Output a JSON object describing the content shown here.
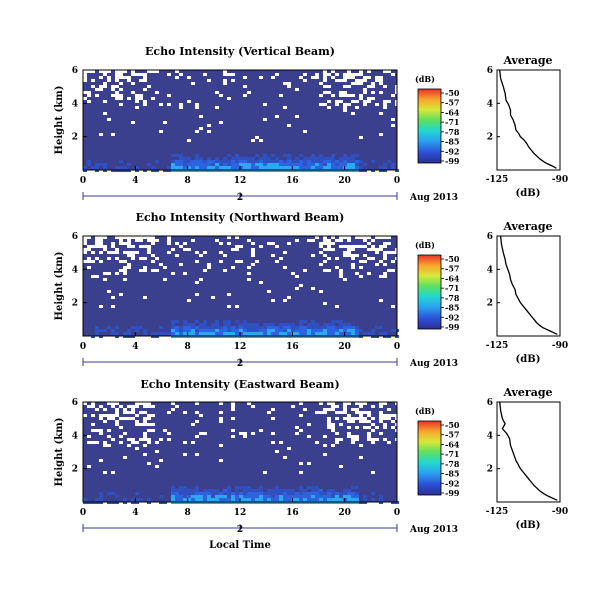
{
  "chart_data": [
    {
      "type": "heatmap",
      "title": "Echo Intensity (Vertical Beam)",
      "ylabel": "Height (km)",
      "x_ticks": [
        "0",
        "4",
        "8",
        "12",
        "16",
        "20",
        "0"
      ],
      "y_ticks": [
        "6",
        "4",
        "2"
      ],
      "xlim": [
        0,
        24
      ],
      "ylim": [
        0,
        6
      ],
      "date_tick": "2",
      "date_label": "Aug 2013",
      "colorbar": {
        "unit": "(dB)",
        "ticks": [
          "-50",
          "-57",
          "-64",
          "-71",
          "-78",
          "-85",
          "-92",
          "-99"
        ]
      },
      "average": {
        "title": "Average",
        "xlabel": "(dB)",
        "x_ticks": [
          "-125",
          "-90"
        ],
        "y_ticks": [
          "6",
          "4",
          "2"
        ],
        "xlim": [
          -125,
          -90
        ],
        "ylim": [
          0,
          6
        ],
        "x": [
          -123.5,
          -123,
          -121.5,
          -120.5,
          -120,
          -118.5,
          -117.5,
          -117.5,
          -116,
          -115,
          -114.5,
          -113,
          -112,
          -110,
          -108.5,
          -107.5,
          -106,
          -104.5,
          -102.5,
          -101,
          -99,
          -97.5,
          -95.5,
          -93.5,
          -92
        ],
        "y": [
          6.0,
          5.5,
          5.0,
          4.6,
          4.2,
          3.9,
          3.6,
          3.3,
          3.0,
          2.7,
          2.4,
          2.2,
          2.0,
          1.8,
          1.6,
          1.4,
          1.2,
          1.0,
          0.8,
          0.65,
          0.5,
          0.4,
          0.3,
          0.2,
          0.1
        ]
      }
    },
    {
      "type": "heatmap",
      "title": "Echo Intensity (Northward Beam)",
      "ylabel": "Height (km)",
      "x_ticks": [
        "0",
        "4",
        "8",
        "12",
        "16",
        "20",
        "0"
      ],
      "y_ticks": [
        "6",
        "4",
        "2"
      ],
      "xlim": [
        0,
        24
      ],
      "ylim": [
        0,
        6
      ],
      "date_tick": "2",
      "date_label": "Aug 2013",
      "colorbar": {
        "unit": "(dB)",
        "ticks": [
          "-50",
          "-57",
          "-64",
          "-71",
          "-78",
          "-85",
          "-92",
          "-99"
        ]
      },
      "average": {
        "title": "Average",
        "xlabel": "(dB)",
        "x_ticks": [
          "-125",
          "-90"
        ],
        "y_ticks": [
          "6",
          "4",
          "2"
        ],
        "xlim": [
          -125,
          -90
        ],
        "ylim": [
          0,
          6
        ],
        "x": [
          -123,
          -122.5,
          -121.5,
          -120.5,
          -120,
          -119,
          -118,
          -117.5,
          -116.5,
          -115,
          -114.5,
          -113,
          -112,
          -110.5,
          -109,
          -107.5,
          -106,
          -104.5,
          -103,
          -101.5,
          -99.5,
          -97.5,
          -95.5,
          -93.5,
          -91.5
        ],
        "y": [
          6.0,
          5.5,
          5.0,
          4.6,
          4.3,
          4.0,
          3.7,
          3.4,
          3.1,
          2.8,
          2.5,
          2.2,
          2.0,
          1.8,
          1.6,
          1.4,
          1.2,
          1.0,
          0.8,
          0.65,
          0.5,
          0.4,
          0.3,
          0.2,
          0.1
        ]
      }
    },
    {
      "type": "heatmap",
      "title": "Echo Intensity (Eastward Beam)",
      "ylabel": "Height (km)",
      "xlabel": "Local Time",
      "x_ticks": [
        "0",
        "4",
        "8",
        "12",
        "16",
        "20",
        "0"
      ],
      "y_ticks": [
        "6",
        "4",
        "2"
      ],
      "xlim": [
        0,
        24
      ],
      "ylim": [
        0,
        6
      ],
      "date_tick": "2",
      "date_label": "Aug 2013",
      "colorbar": {
        "unit": "(dB)",
        "ticks": [
          "-50",
          "-57",
          "-64",
          "-71",
          "-78",
          "-85",
          "-92",
          "-99"
        ]
      },
      "average": {
        "title": "Average",
        "xlabel": "(dB)",
        "x_ticks": [
          "-125",
          "-90"
        ],
        "y_ticks": [
          "6",
          "4",
          "2"
        ],
        "xlim": [
          -125,
          -90
        ],
        "ylim": [
          0,
          6
        ],
        "x": [
          -123.5,
          -123,
          -122,
          -120.5,
          -122,
          -119.5,
          -118,
          -117.5,
          -116.5,
          -115.5,
          -114.5,
          -113,
          -112,
          -110.5,
          -109,
          -107.5,
          -106,
          -104.5,
          -102.5,
          -101,
          -99,
          -97.5,
          -95.5,
          -93.5,
          -91.5
        ],
        "y": [
          6.0,
          5.5,
          5.0,
          4.7,
          4.4,
          4.1,
          3.8,
          3.4,
          3.1,
          2.8,
          2.5,
          2.2,
          2.0,
          1.8,
          1.6,
          1.4,
          1.2,
          1.0,
          0.8,
          0.65,
          0.5,
          0.4,
          0.3,
          0.2,
          0.1
        ]
      }
    }
  ]
}
